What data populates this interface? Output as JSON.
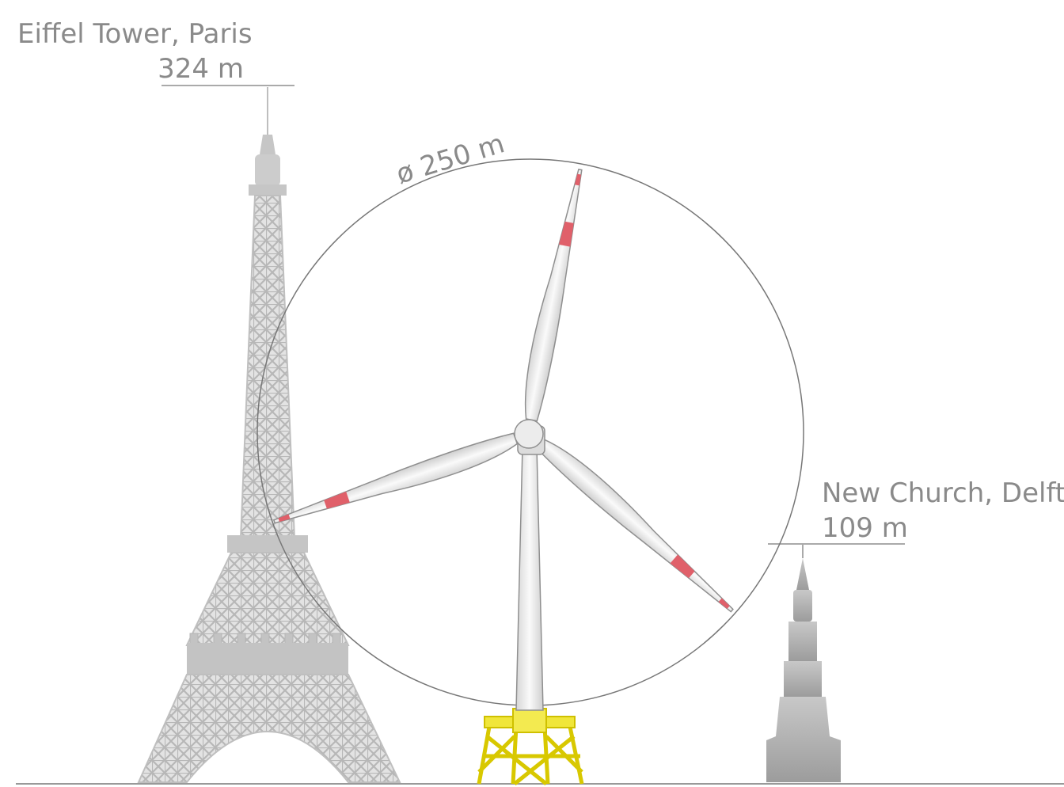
{
  "eiffel": {
    "name": "Eiffel Tower, Paris",
    "height": "324 m"
  },
  "turbine": {
    "diameter": "ø 250 m"
  },
  "church": {
    "name": "New Church, Delft",
    "height": "109 m"
  }
}
